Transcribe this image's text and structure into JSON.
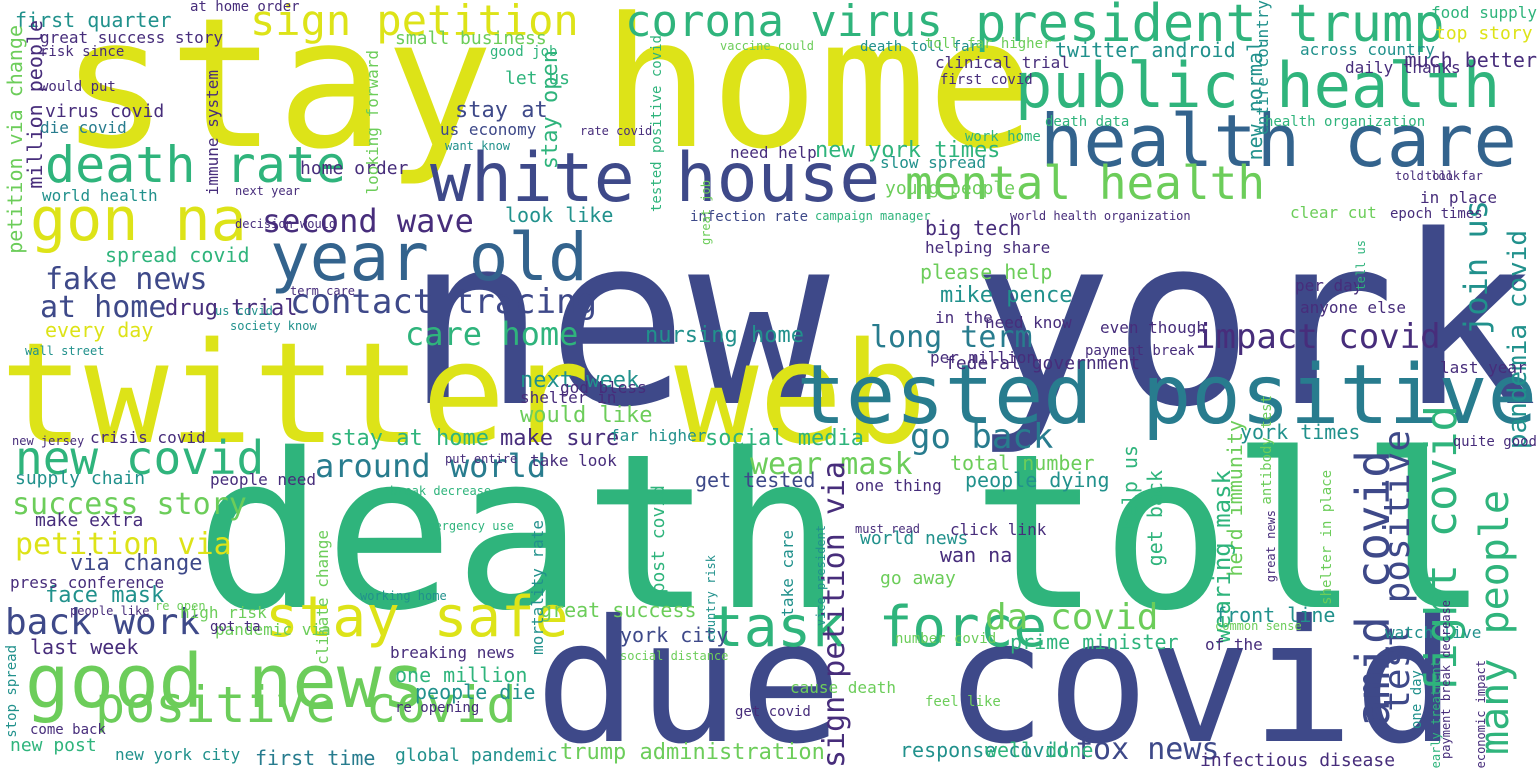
{
  "words": [
    "new york",
    "death toll",
    "stay home",
    "twitter web",
    "due covid",
    "tested positive",
    "white house",
    "health care",
    "public health",
    "good news",
    "year old",
    "death rate",
    "gon na",
    "stay safe",
    "positive covid",
    "president trump",
    "corona virus",
    "task force",
    "mental health",
    "new covid",
    "sign petition",
    "contact tracing",
    "around world",
    "back work",
    "fake news",
    "second wave",
    "care home",
    "at home",
    "success story",
    "petition via",
    "impact covid",
    "many people",
    "fight covid",
    "amid covid",
    "test positive",
    "pandemia covid",
    "join us",
    "go back",
    "wear mask",
    "da covid",
    "long term",
    "fox news",
    "sign petition via",
    "trump administration",
    "face mask",
    "first quarter",
    "twitter android",
    "new york times",
    "spread covid",
    "mike pence",
    "nursing home",
    "small business",
    "every day",
    "drug trial",
    "look like",
    "big tech",
    "please help",
    "next week",
    "would like",
    "stay at home",
    "make sure",
    "social media",
    "get tested",
    "total number",
    "people dying",
    "york times",
    "herd immunity",
    "wearing mask",
    "front line",
    "prime minister",
    "york city",
    "great success",
    "one million",
    "people die",
    "breaking news",
    "response covid",
    "well done",
    "global pandemic",
    "first time",
    "new york city",
    "new post",
    "last week",
    "via change",
    "make extra",
    "supply chain",
    "crisis covid",
    "home order",
    "million people",
    "petition via change",
    "virus covid",
    "world health",
    "die covid",
    "great success story",
    "stay open",
    "stay at",
    "us economy",
    "let us",
    "good job",
    "clinical trial",
    "death data",
    "new normal",
    "need help",
    "slow spread",
    "young people",
    "federal government",
    "even though",
    "per million",
    "in the",
    "need know",
    "helping share",
    "pandemic via",
    "high risk",
    "got ta",
    "people like",
    "re open",
    "press conference",
    "working home",
    "emergency use",
    "break decrease",
    "put entire",
    "people need",
    "take look",
    "far higher",
    "shelter in",
    "post covid",
    "help us",
    "get back",
    "wan na",
    "world news",
    "go away",
    "cause death",
    "feel like",
    "get covid",
    "re opening",
    "come back",
    "stop spread",
    "one thing",
    "must read",
    "click link",
    "take care",
    "vice president",
    "country risk",
    "mortality rate",
    "climate change",
    "social distance",
    "common sense",
    "number covid",
    "of the",
    "watch live",
    "infectious disease",
    "one day",
    "early treatment",
    "economic impact",
    "payment break decrease",
    "great news",
    "shelter in place",
    "antibody test",
    "payment break",
    "god bless",
    "wall street",
    "society know",
    "term care",
    "us covid",
    "new jersey",
    "infection rate",
    "campaign manager",
    "world health organization",
    "epoch times",
    "clear cut",
    "per day",
    "tell us",
    "anyone else",
    "last year",
    "quite good",
    "told look",
    "toll far",
    "in place",
    "much better",
    "daily thanks",
    "top story",
    "food supply",
    "across country",
    "health organization",
    "entire country",
    "first covid",
    "death toll far",
    "vaccine could",
    "toll far higher",
    "at home order",
    "risk since",
    "would put",
    "immune system",
    "next year",
    "decision would",
    "looking forward",
    "want know",
    "rate covid",
    "tested positive covid",
    "work home",
    "great job"
  ],
  "colors": {
    "yellow": "#dde318",
    "lime": "#a0da39",
    "lightgreen": "#6ccd5a",
    "green": "#2fb47c",
    "teal": "#21918c",
    "petrol": "#287c8e",
    "blue": "#33638d",
    "indigo": "#3e4989",
    "purple": "#472d7b",
    "darkpurple": "#440154"
  }
}
